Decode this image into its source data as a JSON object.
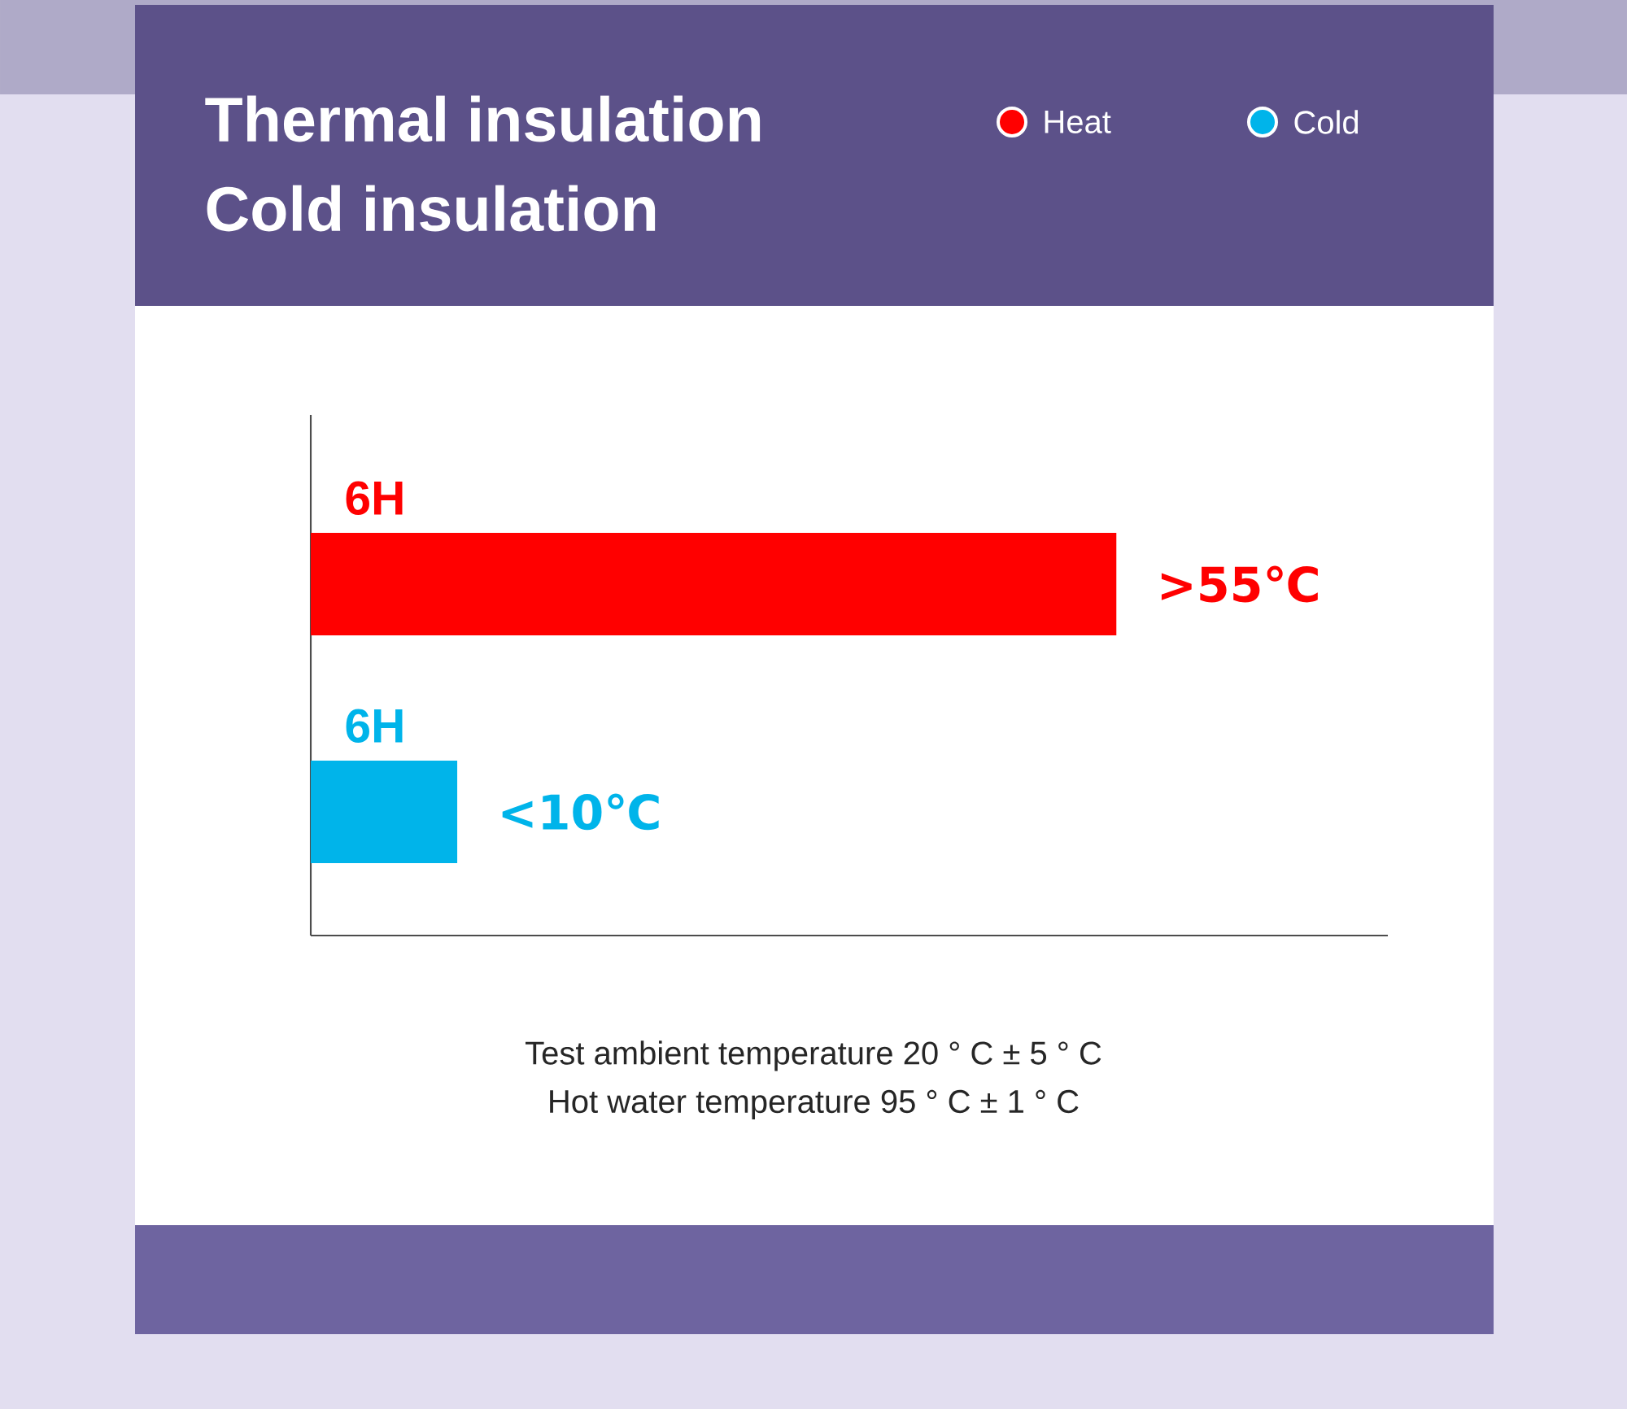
{
  "chart_data": {
    "type": "bar",
    "orientation": "horizontal",
    "title": "Thermal insulation",
    "subtitle": "Cold insulation",
    "categories": [
      "6H",
      "6H"
    ],
    "series": [
      {
        "name": "Heat",
        "color": "#ff0000",
        "values": [
          55,
          null
        ],
        "value_labels": [
          ">55℃",
          null
        ]
      },
      {
        "name": "Cold",
        "color": "#00b4ea",
        "values": [
          null,
          10
        ],
        "value_labels": [
          null,
          "<10℃"
        ]
      }
    ],
    "legend": "top right",
    "annotations": [
      "Test ambient temperature 20 ° C ± 5 ° C",
      "Hot water temperature 95 ° C ± 1 ° C"
    ]
  }
}
